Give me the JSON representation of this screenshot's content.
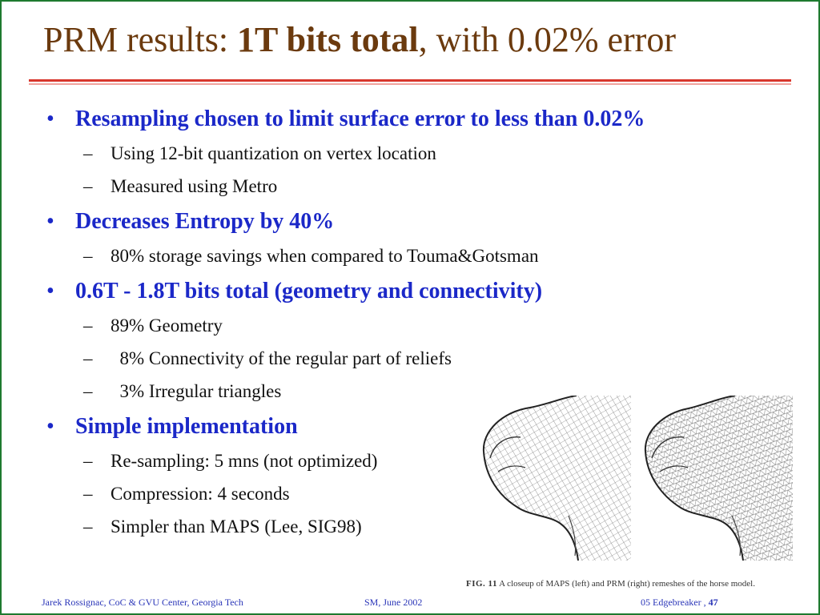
{
  "slide": {
    "title": {
      "prefix": "PRM results: ",
      "bold": "1T bits total",
      "suffix": ", with 0.02% error"
    },
    "bullets": [
      {
        "text": "Resampling chosen to limit surface error to less than 0.02%",
        "subs": [
          "Using 12-bit quantization on vertex location",
          "Measured using Metro"
        ]
      },
      {
        "text": "Decreases Entropy by 40%",
        "subs": [
          "80% storage savings when compared to Touma&Gotsman"
        ]
      },
      {
        "text": "0.6T - 1.8T bits total (geometry and connectivity)",
        "subs": [
          "89% Geometry",
          "  8% Connectivity of the regular part of reliefs",
          "  3% Irregular triangles"
        ]
      },
      {
        "text": "Simple implementation",
        "subs": [
          "Re-sampling: 5 mns (not optimized)",
          "Compression: 4 seconds",
          "Simpler than MAPS (Lee, SIG98)"
        ]
      }
    ],
    "bullet_glyph": "•",
    "dash_glyph": "–",
    "figure": {
      "caption_label": "FIG. 11",
      "caption_text": " A closeup of MAPS (left) and PRM (right) remeshes of the horse model."
    },
    "footer": {
      "left": "Jarek Rossignac, CoC & GVU Center, Georgia Tech",
      "middle": "SM, June 2002",
      "right_label": "05 Edgebreaker , ",
      "page_number": "47"
    },
    "colors": {
      "title": "#6b3a0e",
      "bullet": "#1b28c8",
      "rule": "#d8362c",
      "frame": "#1e7a2f",
      "footer": "#2a35b8"
    }
  }
}
